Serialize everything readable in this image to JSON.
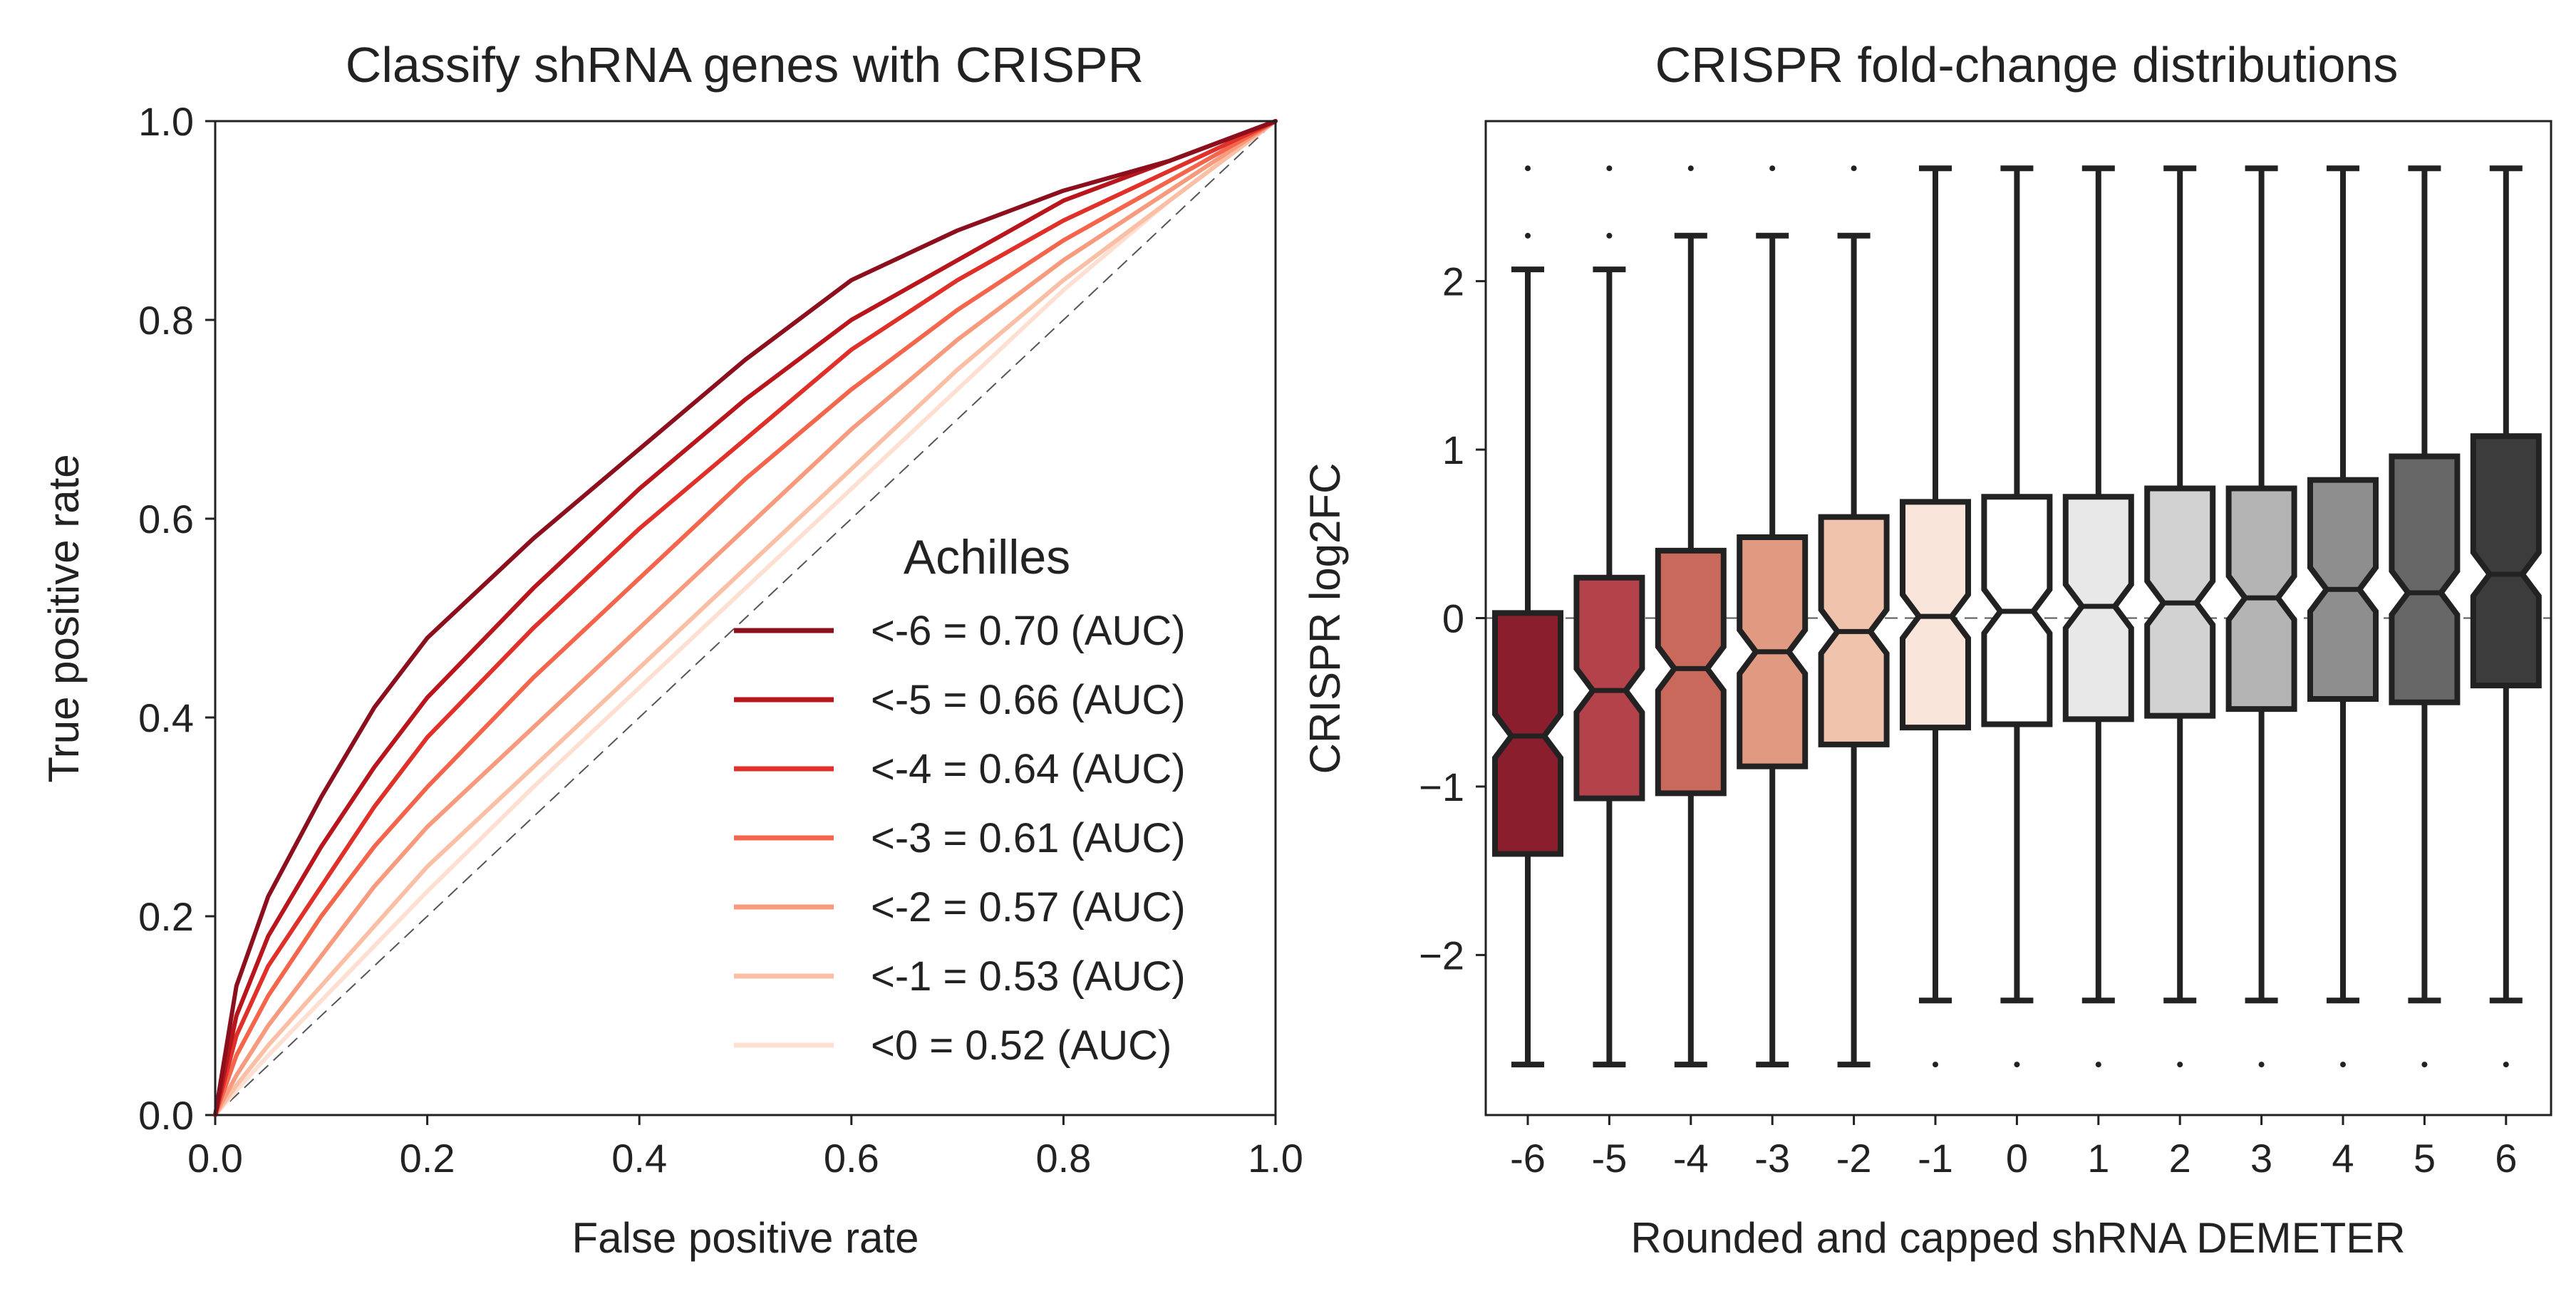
{
  "chart_data": [
    {
      "type": "line",
      "title": "Classify shRNA genes with CRISPR",
      "xlabel": "False positive rate",
      "ylabel": "True positive rate",
      "xlim": [
        0,
        1
      ],
      "ylim": [
        0,
        1
      ],
      "x_ticks": [
        "0.0",
        "0.2",
        "0.4",
        "0.6",
        "0.8",
        "1.0"
      ],
      "y_ticks": [
        "0.0",
        "0.2",
        "0.4",
        "0.6",
        "0.8",
        "1.0"
      ],
      "grid": false,
      "diagonal_reference": true,
      "legend": {
        "title": "Achilles",
        "placement": "lower-right",
        "entries": [
          "<-6 = 0.70 (AUC)",
          "<-5 = 0.66 (AUC)",
          "<-4 = 0.64 (AUC)",
          "<-3 = 0.61 (AUC)",
          "<-2 = 0.57 (AUC)",
          "<-1 = 0.53 (AUC)",
          "<0 = 0.52 (AUC)"
        ]
      },
      "series": [
        {
          "name": "<-6 = 0.70 (AUC)",
          "color": "#8b0f1d",
          "x": [
            0,
            0.02,
            0.05,
            0.1,
            0.15,
            0.2,
            0.3,
            0.4,
            0.5,
            0.6,
            0.7,
            0.8,
            0.9,
            1.0
          ],
          "y": [
            0,
            0.13,
            0.22,
            0.32,
            0.41,
            0.48,
            0.58,
            0.67,
            0.76,
            0.84,
            0.89,
            0.93,
            0.96,
            1.0
          ]
        },
        {
          "name": "<-5 = 0.66 (AUC)",
          "color": "#b9151c",
          "x": [
            0,
            0.02,
            0.05,
            0.1,
            0.15,
            0.2,
            0.3,
            0.4,
            0.5,
            0.6,
            0.7,
            0.8,
            0.9,
            1.0
          ],
          "y": [
            0,
            0.1,
            0.18,
            0.27,
            0.35,
            0.42,
            0.53,
            0.63,
            0.72,
            0.8,
            0.86,
            0.92,
            0.96,
            1.0
          ]
        },
        {
          "name": "<-4 = 0.64 (AUC)",
          "color": "#e0302a",
          "x": [
            0,
            0.02,
            0.05,
            0.1,
            0.15,
            0.2,
            0.3,
            0.4,
            0.5,
            0.6,
            0.7,
            0.8,
            0.9,
            1.0
          ],
          "y": [
            0,
            0.08,
            0.15,
            0.23,
            0.31,
            0.38,
            0.49,
            0.59,
            0.68,
            0.77,
            0.84,
            0.9,
            0.95,
            1.0
          ]
        },
        {
          "name": "<-3 = 0.61 (AUC)",
          "color": "#f4654c",
          "x": [
            0,
            0.02,
            0.05,
            0.1,
            0.15,
            0.2,
            0.3,
            0.4,
            0.5,
            0.6,
            0.7,
            0.8,
            0.9,
            1.0
          ],
          "y": [
            0,
            0.06,
            0.12,
            0.2,
            0.27,
            0.33,
            0.44,
            0.54,
            0.64,
            0.73,
            0.81,
            0.88,
            0.94,
            1.0
          ]
        },
        {
          "name": "<-2 = 0.57 (AUC)",
          "color": "#f89a7e",
          "x": [
            0,
            0.02,
            0.05,
            0.1,
            0.15,
            0.2,
            0.3,
            0.4,
            0.5,
            0.6,
            0.7,
            0.8,
            0.9,
            1.0
          ],
          "y": [
            0,
            0.04,
            0.09,
            0.16,
            0.23,
            0.29,
            0.39,
            0.49,
            0.59,
            0.69,
            0.78,
            0.86,
            0.93,
            1.0
          ]
        },
        {
          "name": "<-1 = 0.53 (AUC)",
          "color": "#fbbfa6",
          "x": [
            0,
            0.02,
            0.05,
            0.1,
            0.15,
            0.2,
            0.3,
            0.4,
            0.5,
            0.6,
            0.7,
            0.8,
            0.9,
            1.0
          ],
          "y": [
            0,
            0.03,
            0.07,
            0.13,
            0.19,
            0.25,
            0.35,
            0.45,
            0.55,
            0.65,
            0.75,
            0.84,
            0.92,
            1.0
          ]
        },
        {
          "name": "<0 = 0.52 (AUC)",
          "color": "#fde0d2",
          "x": [
            0,
            0.02,
            0.05,
            0.1,
            0.15,
            0.2,
            0.3,
            0.4,
            0.5,
            0.6,
            0.7,
            0.8,
            0.9,
            1.0
          ],
          "y": [
            0,
            0.025,
            0.06,
            0.115,
            0.17,
            0.225,
            0.33,
            0.43,
            0.53,
            0.63,
            0.73,
            0.83,
            0.92,
            1.0
          ]
        }
      ]
    },
    {
      "type": "box",
      "title": "CRISPR fold-change distributions",
      "xlabel": "Rounded and capped shRNA DEMETER",
      "ylabel": "CRISPR log2FC",
      "ylim": [
        -2.95,
        2.95
      ],
      "y_ticks": [
        -2,
        -1,
        0,
        1,
        2
      ],
      "y_tick_labels": [
        "−2",
        "−1",
        "0",
        "1",
        "2"
      ],
      "categories": [
        "-6",
        "-5",
        "-4",
        "-3",
        "-2",
        "-1",
        "0",
        "1",
        "2",
        "3",
        "4",
        "5",
        "6"
      ],
      "grid": false,
      "zero_line": true,
      "boxes": [
        {
          "category": "-6",
          "color": "#8b1e2d",
          "whislo": -2.65,
          "q1": -1.4,
          "med": -0.7,
          "q3": 0.03,
          "whishi": 2.07,
          "fliers": [
            2.27,
            2.67
          ]
        },
        {
          "category": "-5",
          "color": "#b3424a",
          "whislo": -2.65,
          "q1": -1.07,
          "med": -0.43,
          "q3": 0.24,
          "whishi": 2.07,
          "fliers": [
            2.27,
            2.67
          ]
        },
        {
          "category": "-4",
          "color": "#c9695c",
          "whislo": -2.65,
          "q1": -1.04,
          "med": -0.3,
          "q3": 0.4,
          "whishi": 2.27,
          "fliers": [
            2.67
          ]
        },
        {
          "category": "-3",
          "color": "#e09a82",
          "whislo": -2.65,
          "q1": -0.88,
          "med": -0.2,
          "q3": 0.48,
          "whishi": 2.27,
          "fliers": [
            2.67
          ]
        },
        {
          "category": "-2",
          "color": "#f0c3ad",
          "whislo": -2.65,
          "q1": -0.75,
          "med": -0.08,
          "q3": 0.6,
          "whishi": 2.27,
          "fliers": [
            2.67
          ]
        },
        {
          "category": "-1",
          "color": "#f9e5da",
          "whislo": -2.27,
          "q1": -0.65,
          "med": 0.01,
          "q3": 0.69,
          "whishi": 2.67,
          "fliers": [
            -2.65
          ]
        },
        {
          "category": "0",
          "color": "#ffffff",
          "whislo": -2.27,
          "q1": -0.63,
          "med": 0.04,
          "q3": 0.72,
          "whishi": 2.67,
          "fliers": [
            -2.65
          ]
        },
        {
          "category": "1",
          "color": "#e8e8e8",
          "whislo": -2.27,
          "q1": -0.6,
          "med": 0.07,
          "q3": 0.72,
          "whishi": 2.67,
          "fliers": [
            -2.65
          ]
        },
        {
          "category": "2",
          "color": "#d2d2d2",
          "whislo": -2.27,
          "q1": -0.58,
          "med": 0.09,
          "q3": 0.77,
          "whishi": 2.67,
          "fliers": [
            -2.65
          ]
        },
        {
          "category": "3",
          "color": "#b4b4b4",
          "whislo": -2.27,
          "q1": -0.54,
          "med": 0.12,
          "q3": 0.77,
          "whishi": 2.67,
          "fliers": [
            -2.65
          ]
        },
        {
          "category": "4",
          "color": "#8e8e8e",
          "whislo": -2.27,
          "q1": -0.48,
          "med": 0.17,
          "q3": 0.82,
          "whishi": 2.67,
          "fliers": [
            -2.65
          ]
        },
        {
          "category": "5",
          "color": "#676767",
          "whislo": -2.27,
          "q1": -0.5,
          "med": 0.15,
          "q3": 0.96,
          "whishi": 2.67,
          "fliers": [
            -2.65
          ]
        },
        {
          "category": "6",
          "color": "#3c3c3c",
          "whislo": -2.27,
          "q1": -0.4,
          "med": 0.26,
          "q3": 1.08,
          "whishi": 2.67,
          "fliers": [
            -2.65
          ]
        }
      ]
    }
  ]
}
